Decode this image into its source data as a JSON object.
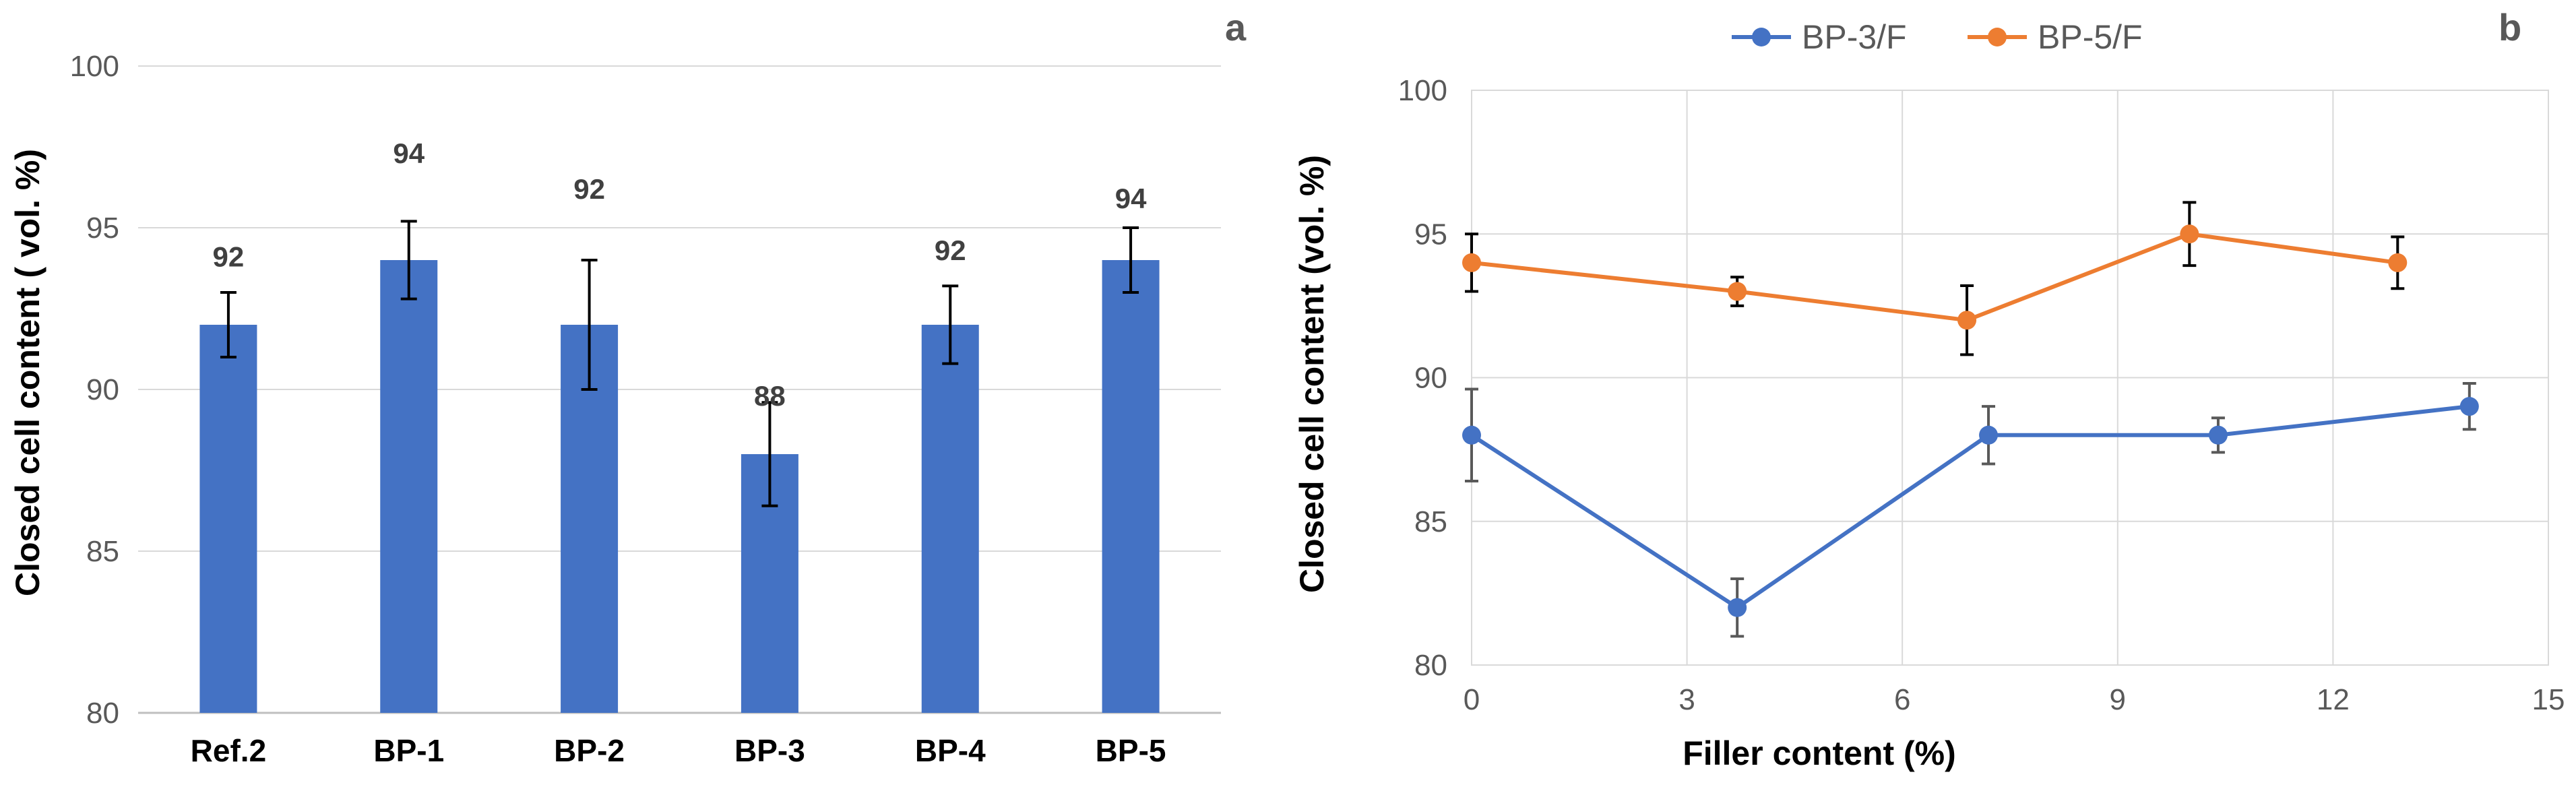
{
  "chart_data": [
    {
      "type": "bar",
      "panel_label": "a",
      "categories": [
        "Ref.2",
        "BP-1",
        "BP-2",
        "BP-3",
        "BP-4",
        "BP-5"
      ],
      "values": [
        92,
        94,
        92,
        88,
        92,
        94
      ],
      "errors": [
        1.0,
        1.2,
        2.0,
        1.6,
        1.2,
        1.0
      ],
      "data_labels": [
        "92",
        "94",
        "92",
        "88",
        "92",
        "94"
      ],
      "label_offsets": [
        1.8,
        3.0,
        3.9,
        1.5,
        2.0,
        1.6
      ],
      "ylabel": "Closed cell content ( vol. %)",
      "xlabel": "",
      "ylim": [
        80,
        100
      ],
      "yticks": [
        80,
        85,
        90,
        95,
        100
      ],
      "grid": true,
      "color": "#4472C4"
    },
    {
      "type": "line",
      "panel_label": "b",
      "xlabel": "Filler content (%)",
      "ylabel": "Closed cell content (vol. %)",
      "xlim": [
        0,
        15
      ],
      "ylim": [
        80,
        100
      ],
      "xticks": [
        0,
        3,
        6,
        9,
        12,
        15
      ],
      "yticks": [
        80,
        85,
        90,
        95,
        100
      ],
      "grid": true,
      "legend_position": "top",
      "series": [
        {
          "name": "BP-3/F",
          "color": "#4472C4",
          "errbar_color": "#595959",
          "x": [
            0,
            3.7,
            7.2,
            10.4,
            13.9
          ],
          "y": [
            88,
            82,
            88,
            88,
            89
          ],
          "errors": [
            1.6,
            1.0,
            1.0,
            0.6,
            0.8
          ]
        },
        {
          "name": "BP-5/F",
          "color": "#ED7D31",
          "errbar_color": "#000000",
          "x": [
            0,
            3.7,
            6.9,
            10.0,
            12.9
          ],
          "y": [
            94,
            93,
            92,
            95,
            94
          ],
          "errors": [
            1.0,
            0.5,
            1.2,
            1.1,
            0.9
          ]
        }
      ]
    }
  ]
}
